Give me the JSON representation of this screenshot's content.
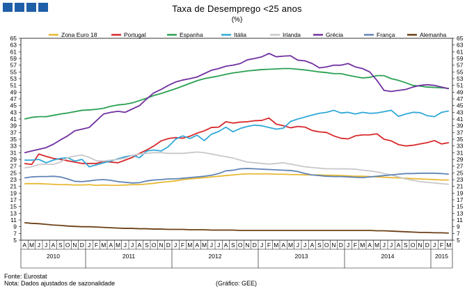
{
  "header": {
    "title": "Taxa de Desemprego <25 anos",
    "subtitle": "(%)"
  },
  "footer": {
    "source": "Fonte: Eurostat",
    "note": "Nota: Dados ajustados de sazonalidade",
    "credit": "(Gráfico: GEE)"
  },
  "logo": {
    "name": "gee-logo",
    "color": "#1f5fa8"
  },
  "chart_data": {
    "type": "line",
    "title": "Taxa de Desemprego <25 anos",
    "ylabel": "(%)",
    "ylim": [
      5,
      65
    ],
    "yticks": [
      5,
      7,
      9,
      11,
      13,
      15,
      17,
      19,
      21,
      23,
      25,
      27,
      29,
      31,
      33,
      35,
      37,
      39,
      41,
      43,
      45,
      47,
      49,
      51,
      53,
      55,
      57,
      59,
      61,
      63,
      65
    ],
    "month_labels": [
      "A",
      "M",
      "J",
      "J",
      "A",
      "S",
      "O",
      "N",
      "D",
      "J",
      "F",
      "M",
      "A",
      "M",
      "J",
      "J",
      "A",
      "S",
      "O",
      "N",
      "D",
      "J",
      "F",
      "M",
      "A",
      "M",
      "J",
      "J",
      "A",
      "S",
      "O",
      "N",
      "D",
      "J",
      "F",
      "M",
      "A",
      "M",
      "J",
      "J",
      "A",
      "S",
      "O",
      "N",
      "D",
      "J",
      "F",
      "M",
      "A",
      "M",
      "J",
      "J",
      "A",
      "S",
      "O",
      "N",
      "D",
      "J",
      "F",
      "M"
    ],
    "years": [
      {
        "label": "2010",
        "start": 0,
        "end": 8
      },
      {
        "label": "2011",
        "start": 9,
        "end": 20
      },
      {
        "label": "2012",
        "start": 21,
        "end": 32
      },
      {
        "label": "2013",
        "start": 33,
        "end": 44
      },
      {
        "label": "2014",
        "start": 45,
        "end": 56
      },
      {
        "label": "2015",
        "start": 57,
        "end": 59
      }
    ],
    "legend_position": "top",
    "grid": false,
    "series": [
      {
        "name": "Zona Euro 18",
        "color": "#e8b830",
        "values": [
          21.8,
          21.8,
          21.8,
          21.7,
          21.6,
          21.5,
          21.5,
          21.4,
          21.4,
          21.5,
          21.3,
          21.4,
          21.3,
          21.3,
          21.4,
          21.5,
          21.5,
          21.7,
          21.9,
          22.2,
          22.4,
          22.6,
          23.0,
          23.2,
          23.4,
          23.6,
          23.8,
          24.0,
          24.2,
          24.4,
          24.6,
          24.7,
          24.7,
          24.7,
          24.7,
          24.6,
          24.6,
          24.5,
          24.5,
          24.4,
          24.4,
          24.4,
          24.3,
          24.3,
          24.2,
          24.1,
          24.0,
          24.0,
          23.9,
          23.8,
          23.7,
          23.6,
          23.5,
          23.4,
          23.3,
          23.2,
          23.1,
          23.0,
          22.9,
          22.9
        ]
      },
      {
        "name": "Portugal",
        "color": "#d8282a",
        "values": [
          27.8,
          27.5,
          30.6,
          29.9,
          29.3,
          29.0,
          28.6,
          28.2,
          27.8,
          27.8,
          27.8,
          28.4,
          28.2,
          28.0,
          28.8,
          29.6,
          30.8,
          31.8,
          33.0,
          34.5,
          35.2,
          35.5,
          35.3,
          35.9,
          36.8,
          37.5,
          38.5,
          38.6,
          40.2,
          39.8,
          40.1,
          40.2,
          40.5,
          40.6,
          41.3,
          39.5,
          39.0,
          38.4,
          38.8,
          38.6,
          37.6,
          37.2,
          37.0,
          36.0,
          35.3,
          35.1,
          36.0,
          36.3,
          36.3,
          36.6,
          35.0,
          34.5,
          33.4,
          33.0,
          33.2,
          33.6,
          34.0,
          34.6,
          33.6,
          34.0
        ]
      },
      {
        "name": "Espanha",
        "color": "#28a050",
        "values": [
          41.0,
          41.5,
          41.7,
          41.7,
          42.1,
          42.5,
          42.8,
          43.2,
          43.6,
          43.7,
          43.9,
          44.2,
          44.8,
          45.2,
          45.4,
          45.8,
          46.5,
          47.2,
          48.0,
          48.6,
          49.3,
          50.0,
          50.8,
          51.6,
          52.4,
          53.0,
          53.4,
          53.8,
          54.3,
          54.7,
          55.0,
          55.3,
          55.5,
          55.7,
          55.8,
          55.9,
          56.0,
          56.0,
          55.8,
          55.6,
          55.3,
          55.0,
          54.8,
          54.5,
          54.5,
          54.0,
          53.6,
          53.2,
          53.4,
          53.9,
          53.9,
          53.0,
          52.5,
          51.8,
          51.0,
          50.8,
          50.5,
          50.4,
          50.3,
          50.1
        ]
      },
      {
        "name": "Itália",
        "color": "#30a8d8",
        "values": [
          28.8,
          28.8,
          29.0,
          28.0,
          28.8,
          29.3,
          29.5,
          28.5,
          29.0,
          26.8,
          27.4,
          28.0,
          28.5,
          29.2,
          29.8,
          30.2,
          29.5,
          31.5,
          31.8,
          31.5,
          32.8,
          35.0,
          36.0,
          35.2,
          36.2,
          34.6,
          36.5,
          37.3,
          38.6,
          37.2,
          38.2,
          38.8,
          39.2,
          39.0,
          38.5,
          38.0,
          38.3,
          40.3,
          41.0,
          41.6,
          42.2,
          42.7,
          43.0,
          43.6,
          42.8,
          43.0,
          42.5,
          43.0,
          42.7,
          42.8,
          43.2,
          43.6,
          41.8,
          42.5,
          43.0,
          42.9,
          42.0,
          41.7,
          43.0,
          43.4
        ]
      },
      {
        "name": "Irlanda",
        "color": "#c8c8cc",
        "values": [
          26.5,
          26.8,
          27.5,
          27.6,
          27.5,
          28.2,
          29.5,
          30.0,
          30.3,
          29.6,
          28.6,
          28.5,
          28.8,
          29.0,
          29.4,
          30.2,
          30.6,
          30.8,
          31.0,
          31.0,
          30.8,
          30.8,
          30.8,
          31.0,
          31.2,
          31.0,
          30.6,
          30.2,
          29.8,
          29.4,
          28.8,
          28.2,
          28.0,
          27.8,
          27.6,
          27.8,
          28.0,
          27.6,
          27.2,
          26.8,
          26.6,
          26.4,
          26.2,
          26.2,
          26.2,
          26.2,
          26.1,
          25.8,
          25.6,
          25.3,
          24.8,
          24.4,
          23.8,
          23.2,
          22.8,
          22.4,
          22.2,
          22.0,
          21.8,
          21.6
        ]
      },
      {
        "name": "Grécia",
        "color": "#7030a0",
        "values": [
          31.0,
          31.5,
          32.0,
          32.5,
          33.5,
          34.8,
          36.0,
          37.5,
          38.0,
          38.5,
          40.5,
          42.5,
          43.0,
          43.3,
          43.0,
          44.0,
          45.0,
          47.0,
          48.8,
          49.8,
          51.0,
          52.0,
          52.6,
          53.0,
          53.5,
          54.5,
          55.5,
          56.0,
          56.7,
          57.0,
          57.5,
          58.6,
          59.0,
          59.5,
          60.5,
          59.5,
          59.7,
          59.8,
          58.5,
          58.3,
          57.5,
          56.2,
          56.5,
          57.0,
          57.0,
          57.5,
          56.5,
          56.0,
          55.0,
          52.5,
          49.5,
          49.2,
          49.5,
          49.8,
          50.5,
          51.0,
          51.2,
          51.0,
          50.5,
          50.0
        ]
      },
      {
        "name": "França",
        "color": "#5f83b4",
        "values": [
          23.5,
          23.8,
          23.9,
          23.9,
          24.0,
          23.8,
          23.2,
          22.5,
          22.4,
          22.6,
          22.9,
          23.0,
          22.8,
          22.4,
          22.2,
          22.0,
          22.1,
          22.6,
          22.9,
          23.0,
          23.2,
          23.2,
          23.4,
          23.6,
          23.8,
          24.0,
          24.3,
          24.8,
          25.6,
          25.8,
          26.2,
          26.3,
          26.2,
          26.1,
          26.0,
          25.9,
          25.8,
          25.7,
          25.4,
          24.8,
          24.4,
          24.2,
          24.0,
          23.9,
          23.9,
          23.8,
          23.7,
          23.6,
          23.8,
          24.0,
          24.2,
          24.4,
          24.6,
          24.8,
          24.8,
          24.9,
          24.9,
          24.9,
          24.8,
          24.6
        ]
      },
      {
        "name": "Alemanha",
        "color": "#6b3f14",
        "values": [
          10.2,
          10.0,
          9.9,
          9.7,
          9.5,
          9.4,
          9.2,
          9.1,
          9.0,
          9.0,
          8.9,
          8.8,
          8.7,
          8.6,
          8.5,
          8.5,
          8.4,
          8.4,
          8.3,
          8.3,
          8.2,
          8.2,
          8.2,
          8.1,
          8.1,
          8.1,
          8.0,
          8.0,
          8.0,
          8.0,
          7.9,
          7.9,
          7.9,
          7.9,
          7.9,
          7.9,
          7.9,
          7.9,
          7.9,
          7.9,
          7.9,
          7.9,
          7.9,
          7.9,
          7.9,
          7.9,
          7.9,
          7.9,
          7.9,
          7.8,
          7.8,
          7.7,
          7.6,
          7.5,
          7.4,
          7.3,
          7.3,
          7.2,
          7.2,
          7.1
        ]
      }
    ]
  }
}
